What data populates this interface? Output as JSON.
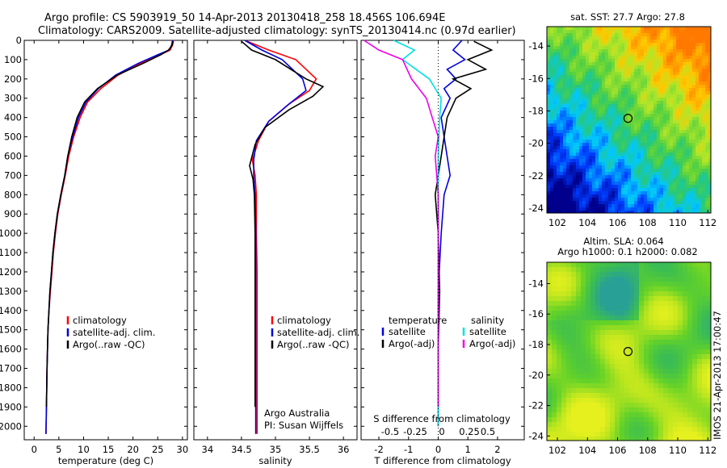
{
  "header": {
    "line1": "Argo profile: CS 5903919_50 14-Apr-2013 20130418_258 18.456S 106.694E",
    "line2": "Climatology: CARS2009. Satellite-adjusted climatology: synTS_20130414.nc (0.97d earlier)"
  },
  "colors": {
    "climatology": "#ff0000",
    "satellite": "#0000dd",
    "argo": "#000000",
    "sat_salinity": "#00e0e0",
    "argo_salinity": "#ee00ee"
  },
  "chart_data": [
    {
      "id": "temperature",
      "type": "line",
      "xlabel": "temperature (deg C)",
      "ylabel": "",
      "xlim": [
        -2,
        31
      ],
      "ylim": [
        2070,
        0
      ],
      "xticks": [
        0,
        5,
        10,
        15,
        20,
        25,
        30
      ],
      "yticks": [
        0,
        100,
        200,
        300,
        400,
        500,
        600,
        700,
        800,
        900,
        1000,
        1100,
        1200,
        1300,
        1400,
        1500,
        1600,
        1700,
        1800,
        1900,
        2000
      ],
      "legend": [
        "climatology",
        "satellite-adj. clim.",
        "Argo(..raw -QC)"
      ],
      "series": [
        {
          "name": "climatology",
          "color": "#ff0000",
          "x": [
            28.2,
            28.0,
            27.5,
            25.5,
            21.5,
            17.0,
            13.5,
            10.8,
            9.3,
            8.0,
            7.0,
            6.3,
            5.5,
            4.8,
            4.3,
            3.9,
            3.6,
            3.3,
            3.0,
            2.8,
            2.6,
            2.5,
            2.4
          ],
          "y": [
            0,
            25,
            50,
            75,
            120,
            180,
            250,
            320,
            400,
            500,
            600,
            700,
            800,
            900,
            1000,
            1100,
            1200,
            1300,
            1400,
            1500,
            1700,
            1900,
            2040
          ]
        },
        {
          "name": "satellite-adj. clim.",
          "color": "#0000dd",
          "x": [
            28.0,
            27.8,
            27.3,
            25.0,
            21.0,
            16.5,
            13.0,
            10.5,
            9.0,
            7.8,
            6.8,
            6.2,
            5.4,
            4.7,
            4.2,
            3.8,
            3.5,
            3.2,
            3.0,
            2.8,
            2.6,
            2.5,
            2.4
          ],
          "y": [
            0,
            25,
            50,
            75,
            120,
            180,
            250,
            320,
            400,
            500,
            600,
            700,
            800,
            900,
            1000,
            1100,
            1200,
            1300,
            1400,
            1500,
            1700,
            1900,
            2040
          ]
        },
        {
          "name": "Argo(..raw -QC)",
          "color": "#000000",
          "x": [
            28.1,
            27.9,
            27.2,
            25.6,
            22.0,
            16.8,
            12.8,
            10.2,
            8.7,
            7.6,
            6.8,
            6.2,
            5.4,
            4.7,
            4.2,
            3.8,
            3.5,
            3.2,
            3.0,
            2.8,
            2.6,
            2.5
          ],
          "y": [
            5,
            25,
            50,
            75,
            120,
            180,
            250,
            320,
            400,
            500,
            600,
            700,
            800,
            900,
            1000,
            1100,
            1200,
            1300,
            1400,
            1500,
            1700,
            1900
          ]
        }
      ]
    },
    {
      "id": "salinity",
      "type": "line",
      "xlabel": "salinity",
      "xlim": [
        33.8,
        36.2
      ],
      "ylim": [
        2070,
        0
      ],
      "xticks": [
        34,
        34.5,
        35,
        35.5,
        36
      ],
      "legend": [
        "climatology",
        "satellite-adj. clim.",
        "Argo(..raw -QC)"
      ],
      "annotation": [
        "Argo Australia",
        "PI: Susan Wijffels"
      ],
      "series": [
        {
          "name": "climatology",
          "color": "#ff0000",
          "x": [
            34.55,
            34.9,
            35.3,
            35.6,
            35.5,
            35.2,
            34.9,
            34.75,
            34.66,
            34.7,
            34.72,
            34.72,
            34.73,
            34.73,
            34.73,
            34.73,
            34.73
          ],
          "y": [
            0,
            50,
            100,
            200,
            260,
            330,
            420,
            520,
            620,
            700,
            800,
            1000,
            1200,
            1400,
            1600,
            1800,
            2040
          ]
        },
        {
          "name": "satellite-adj. clim.",
          "color": "#0000dd",
          "x": [
            34.55,
            34.8,
            35.1,
            35.4,
            35.45,
            35.2,
            34.9,
            34.72,
            34.68,
            34.68,
            34.7,
            34.71,
            34.71,
            34.71,
            34.71,
            34.71,
            34.71
          ],
          "y": [
            0,
            50,
            100,
            200,
            260,
            330,
            420,
            520,
            620,
            700,
            800,
            1000,
            1200,
            1400,
            1600,
            1800,
            2040
          ]
        },
        {
          "name": "Argo(..raw -QC)",
          "color": "#000000",
          "x": [
            34.5,
            34.65,
            35.0,
            35.45,
            35.7,
            35.55,
            35.2,
            34.85,
            34.7,
            34.62,
            34.67,
            34.69,
            34.7,
            34.7,
            34.7,
            34.7
          ],
          "y": [
            5,
            50,
            100,
            200,
            240,
            290,
            360,
            450,
            540,
            650,
            720,
            800,
            1000,
            1300,
            1600,
            1900
          ]
        }
      ]
    },
    {
      "id": "differences",
      "type": "line",
      "xlabel": "T difference from climatology",
      "xlabel_top": "S difference from climatology",
      "xlim": [
        -2.6,
        2.9
      ],
      "ylim": [
        2070,
        0
      ],
      "xticks": [
        -2,
        -1,
        0,
        1,
        2
      ],
      "xticks_top": [
        "-0.5",
        "-0.25",
        "0",
        "0.25",
        "0.5"
      ],
      "legend": {
        "temperature": [
          "satellite",
          "Argo(-adj)"
        ],
        "salinity": [
          "satellite",
          "Argo(-adj)"
        ],
        "headers": [
          "temperature",
          "salinity"
        ]
      },
      "series": [
        {
          "name": "T satellite",
          "color": "#0000dd",
          "x": [
            0.8,
            0.5,
            0.9,
            0.3,
            0.6,
            0.2,
            0.4,
            0.1,
            0.2,
            0.3,
            0.4,
            0.2,
            0.1,
            0.0,
            0.0,
            0.0
          ],
          "y": [
            0,
            50,
            100,
            150,
            200,
            250,
            300,
            400,
            500,
            600,
            700,
            800,
            1000,
            1300,
            1600,
            2000
          ]
        },
        {
          "name": "T Argo(-adj)",
          "color": "#000000",
          "x": [
            1.2,
            1.8,
            1.0,
            1.6,
            0.5,
            1.1,
            0.6,
            0.3,
            0.2,
            0.1,
            0.0,
            -0.1,
            0.0,
            0.05,
            0.0,
            0.0
          ],
          "y": [
            5,
            50,
            100,
            150,
            200,
            250,
            300,
            400,
            500,
            600,
            700,
            800,
            1000,
            1300,
            1600,
            1900
          ]
        },
        {
          "name": "S satellite",
          "color": "#00e0e0",
          "x": [
            -1.5,
            -0.8,
            -1.2,
            -0.3,
            0.1,
            0.05,
            0.0,
            0.0,
            0.0,
            0.0
          ],
          "y": [
            0,
            50,
            100,
            200,
            300,
            400,
            600,
            1000,
            1500,
            2000
          ]
        },
        {
          "name": "S Argo(-adj)",
          "color": "#ee00ee",
          "x": [
            -2.5,
            -2.0,
            -1.2,
            -0.9,
            -0.4,
            -0.2,
            0.0,
            -0.1,
            0.0,
            0.0,
            0.0
          ],
          "y": [
            0,
            50,
            100,
            200,
            300,
            400,
            500,
            600,
            800,
            1200,
            1900
          ]
        }
      ]
    },
    {
      "id": "sst-map",
      "type": "heatmap",
      "title": "sat. SST: 27.7 Argo: 27.8",
      "xlim": [
        101.3,
        112.2
      ],
      "ylim": [
        -24.3,
        -12.8
      ],
      "xticks": [
        102,
        104,
        106,
        108,
        110,
        112
      ],
      "yticks": [
        -14,
        -16,
        -18,
        -20,
        -22,
        -24
      ],
      "marker": {
        "lon": 106.694,
        "lat": -18.456
      }
    },
    {
      "id": "sla-map",
      "type": "heatmap",
      "title_line1": "Altim. SLA: 0.064",
      "title_line2": "Argo h1000: 0.1 h2000: 0.082",
      "xlim": [
        101.3,
        112.2
      ],
      "ylim": [
        -24.3,
        -12.6
      ],
      "xticks": [
        102,
        104,
        106,
        108,
        110,
        112
      ],
      "yticks": [
        -14,
        -16,
        -18,
        -20,
        -22,
        -24
      ],
      "marker": {
        "lon": 106.694,
        "lat": -18.456
      }
    }
  ],
  "footer_stamp": "IMOS 21-Apr-2013 17:00:47"
}
